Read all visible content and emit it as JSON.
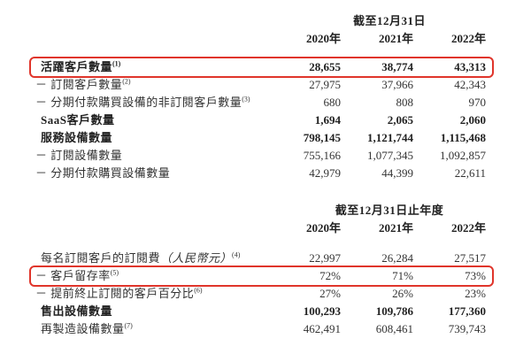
{
  "page": {
    "background": "#ffffff",
    "text_color": "#333333",
    "highlight_color": "#e0352b"
  },
  "table1": {
    "period_header": "截至12月31日",
    "years": [
      "2020年",
      "2021年",
      "2022年"
    ],
    "rows": [
      {
        "label": "活躍客戶數量",
        "sup": "(1)",
        "values": [
          "28,655",
          "38,774",
          "43,313"
        ],
        "bold": true,
        "highlighted": true
      },
      {
        "label": "－ 訂閱客戶數量",
        "sup": "(2)",
        "values": [
          "27,975",
          "37,966",
          "42,343"
        ]
      },
      {
        "label": "－ 分期付款購買設備的非訂閱客戶數量",
        "sup": "(3)",
        "values": [
          "680",
          "808",
          "970"
        ]
      },
      {
        "label": "SaaS客戶數量",
        "values": [
          "1,694",
          "2,065",
          "2,060"
        ],
        "bold": true
      },
      {
        "label": "服務設備數量",
        "values": [
          "798,145",
          "1,121,744",
          "1,115,468"
        ],
        "bold": true
      },
      {
        "label": "－ 訂閱設備數量",
        "values": [
          "755,166",
          "1,077,345",
          "1,092,857"
        ]
      },
      {
        "label": "－ 分期付款購買設備數量",
        "values": [
          "42,979",
          "44,399",
          "22,611"
        ]
      }
    ]
  },
  "table2": {
    "period_header": "截至12月31日止年度",
    "years": [
      "2020年",
      "2021年",
      "2022年"
    ],
    "rows": [
      {
        "label": "每名訂閱客戶的訂閱費",
        "label_italic": "（人民幣元）",
        "sup": "(4)",
        "values": [
          "22,997",
          "26,284",
          "27,517"
        ]
      },
      {
        "label": "－ 客戶留存率",
        "sup": "(5)",
        "values": [
          "72%",
          "71%",
          "73%"
        ],
        "highlighted": true
      },
      {
        "label": "－ 提前終止訂閱的客戶百分比",
        "sup": "(6)",
        "values": [
          "27%",
          "26%",
          "23%"
        ]
      },
      {
        "label": "售出設備數量",
        "values": [
          "100,293",
          "109,786",
          "177,360"
        ],
        "bold": true
      },
      {
        "label": "再製造設備數量",
        "sup": "(7)",
        "values": [
          "462,491",
          "608,461",
          "739,743"
        ]
      }
    ]
  }
}
